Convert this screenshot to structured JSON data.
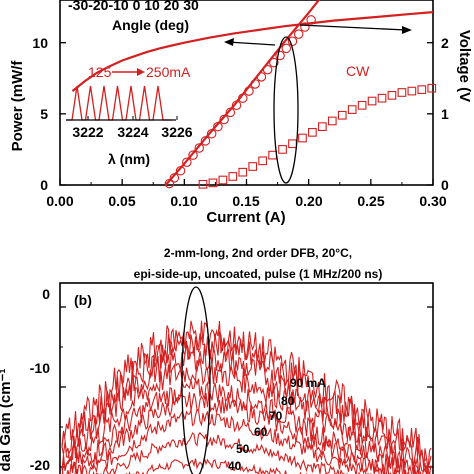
{
  "colors": {
    "accent": "#d42020",
    "axis": "#000000",
    "background": "#ffffff"
  },
  "chart_data": [
    {
      "type": "line",
      "title": "",
      "xlabel": "Current (A)",
      "ylabel_left": "Power (mW/f",
      "ylabel_right": "Voltage (V",
      "xlim": [
        0,
        0.3
      ],
      "ylim_left": [
        0,
        13
      ],
      "ylim_right": [
        0,
        2.6
      ],
      "xticks": [
        "0.00",
        "0.05",
        "0.10",
        "0.15",
        "0.20",
        "0.25",
        "0.30"
      ],
      "yticks_left": [
        "0",
        "5",
        "10"
      ],
      "yticks_right": [
        "0",
        "1",
        "2"
      ],
      "series": [
        {
          "name": "",
          "style": "line",
          "axis": "right",
          "x": [
            0.01,
            0.02,
            0.03,
            0.04,
            0.05,
            0.06,
            0.07,
            0.08,
            0.09,
            0.1,
            0.12,
            0.14,
            0.16,
            0.18,
            0.2,
            0.22,
            0.24,
            0.26,
            0.28,
            0.3
          ],
          "values": [
            1.32,
            1.46,
            1.58,
            1.67,
            1.75,
            1.81,
            1.87,
            1.92,
            1.96,
            2.0,
            2.07,
            2.13,
            2.18,
            2.23,
            2.27,
            2.31,
            2.34,
            2.37,
            2.4,
            2.43
          ]
        },
        {
          "name": "",
          "style": "line",
          "axis": "left",
          "x": [
            0.085,
            0.1,
            0.12,
            0.14,
            0.16,
            0.18,
            0.2,
            0.22
          ],
          "values": [
            0,
            1.5,
            3.6,
            5.6,
            7.8,
            10.0,
            12.1,
            14.3
          ]
        },
        {
          "name": "",
          "style": "circles",
          "axis": "left",
          "x": [
            0.088,
            0.092,
            0.097,
            0.102,
            0.107,
            0.112,
            0.117,
            0.122,
            0.127,
            0.132,
            0.137,
            0.142,
            0.147,
            0.152,
            0.157,
            0.162,
            0.167,
            0.172,
            0.177,
            0.182,
            0.187,
            0.192,
            0.197,
            0.202
          ],
          "values": [
            0.1,
            0.5,
            1.0,
            1.6,
            2.1,
            2.6,
            3.1,
            3.6,
            4.1,
            4.6,
            5.1,
            5.6,
            6.1,
            6.6,
            7.1,
            7.6,
            8.1,
            8.6,
            9.1,
            9.6,
            10.1,
            10.6,
            11.1,
            11.6
          ]
        },
        {
          "name": "CW",
          "style": "squares",
          "axis": "left",
          "x": [
            0.115,
            0.123,
            0.131,
            0.139,
            0.147,
            0.155,
            0.163,
            0.171,
            0.179,
            0.187,
            0.195,
            0.203,
            0.211,
            0.219,
            0.227,
            0.235,
            0.243,
            0.251,
            0.259,
            0.267,
            0.275,
            0.283,
            0.291,
            0.299
          ],
          "values": [
            0.05,
            0.15,
            0.35,
            0.6,
            0.9,
            1.3,
            1.7,
            2.1,
            2.5,
            2.9,
            3.3,
            3.7,
            4.1,
            4.5,
            4.9,
            5.3,
            5.6,
            5.9,
            6.1,
            6.3,
            6.5,
            6.6,
            6.7,
            6.8
          ]
        }
      ],
      "annotations": {
        "angle_ticks": "-30-20-10  0  10  20  30",
        "angle_label": "Angle (deg)",
        "cw_label": "CW",
        "inset_current": "125",
        "inset_current_end": "250mA",
        "inset_ticks": [
          "3222",
          "3224",
          "3226"
        ],
        "inset_label": "λ (nm)"
      }
    },
    {
      "type": "line",
      "panel_label": "(b)",
      "caption_line1": "2-mm-long,  2nd order DFB, 20°C,",
      "caption_line2": "epi-side-up, uncoated, pulse (1 MHz/200 ns)",
      "ylabel": "dal Gain (cm⁻¹",
      "yticks": [
        "0",
        "-10",
        "-20"
      ],
      "ylim": [
        -22,
        3
      ],
      "series": [
        {
          "name": "40",
          "peak": -19.5
        },
        {
          "name": "50",
          "peak": -16.5
        },
        {
          "name": "60",
          "peak": -13.8
        },
        {
          "name": "70",
          "peak": -11.8
        },
        {
          "name": "80",
          "peak": -10.3
        },
        {
          "name": "90 mA",
          "peak": -8.0
        },
        {
          "name": "",
          "peak": -6.2
        },
        {
          "name": "",
          "peak": -4.6
        },
        {
          "name": "",
          "peak": -3.5
        }
      ]
    }
  ]
}
